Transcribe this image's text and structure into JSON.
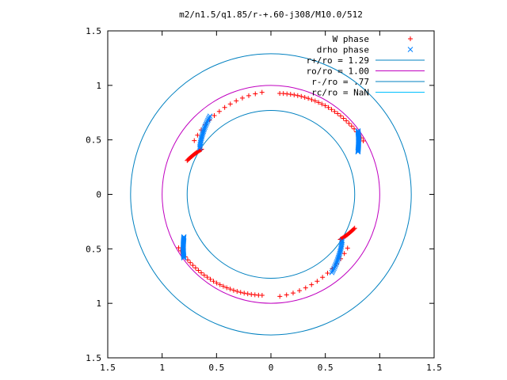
{
  "chart_data": {
    "type": "scatter",
    "title": "m2/n1.5/q1.85/r-+.60-j308/M10.0/512",
    "xlim": [
      -1.5,
      1.5
    ],
    "ylim": [
      -1.5,
      1.5
    ],
    "grid": false,
    "legend_position": "top-right",
    "x_ticks": [
      -1.5,
      -1,
      -0.5,
      0,
      0.5,
      1,
      1.5
    ],
    "x_tick_labels": [
      "1.5",
      "1",
      "0.5",
      "0",
      "0.5",
      "1",
      "1.5"
    ],
    "y_ticks": [
      1.5,
      1,
      0.5,
      0,
      -0.5,
      -1,
      -1.5
    ],
    "y_tick_labels": [
      "1.5",
      "1",
      "0.5",
      "0",
      "0.5",
      "1",
      "1.5"
    ],
    "legend": [
      {
        "label": "W phase",
        "color": "#ff0000",
        "marker": "plus"
      },
      {
        "label": "drho phase",
        "color": "#0080ff",
        "marker": "cross"
      },
      {
        "label": "r+/ro = 1.29",
        "color": "#0080c0",
        "marker": "line"
      },
      {
        "label": "ro/ro = 1.00",
        "color": "#c000c0",
        "marker": "line"
      },
      {
        "label": "r-/ro = .77",
        "color": "#0080c0",
        "marker": "line"
      },
      {
        "label": "rc/ro = NaN",
        "color": "#00c0ff",
        "marker": "line"
      }
    ],
    "circles": [
      {
        "name": "r+/ro = 1.29",
        "r": 1.29,
        "color": "#0080c0"
      },
      {
        "name": "ro/ro = 1.00",
        "r": 1.0,
        "color": "#c000c0"
      },
      {
        "name": "r-/ro = .77",
        "r": 0.77,
        "color": "#0080c0"
      }
    ],
    "series": [
      {
        "name": "W phase",
        "color": "#ff0000",
        "arcs": [
          {
            "r_start": 0.93,
            "r_end": 0.98,
            "theta_start_deg": 85,
            "theta_end_deg": 30,
            "n": 28
          },
          {
            "r_start": 0.86,
            "r_end": 0.94,
            "theta_start_deg": 145,
            "theta_end_deg": 95,
            "n": 14
          },
          {
            "r_start": 0.83,
            "r_end": 0.76,
            "theta_start_deg": 158,
            "theta_end_deg": 147,
            "n": 18
          },
          {
            "r_start": 0.93,
            "r_end": 0.98,
            "theta_start_deg": 265,
            "theta_end_deg": 210,
            "n": 28
          },
          {
            "r_start": 0.86,
            "r_end": 0.94,
            "theta_start_deg": 325,
            "theta_end_deg": 275,
            "n": 14
          },
          {
            "r_start": 0.83,
            "r_end": 0.76,
            "theta_start_deg": 338,
            "theta_end_deg": 327,
            "n": 18
          }
        ]
      },
      {
        "name": "drho phase",
        "color": "#0080ff",
        "arcs": [
          {
            "r_start": 0.99,
            "r_end": 0.89,
            "theta_start_deg": 36,
            "theta_end_deg": 26,
            "n": 24
          },
          {
            "r_start": 0.78,
            "r_end": 0.91,
            "theta_start_deg": 147,
            "theta_end_deg": 128,
            "n": 24
          },
          {
            "r_start": 0.99,
            "r_end": 0.89,
            "theta_start_deg": 216,
            "theta_end_deg": 206,
            "n": 24
          },
          {
            "r_start": 0.78,
            "r_end": 0.91,
            "theta_start_deg": 327,
            "theta_end_deg": 308,
            "n": 24
          }
        ]
      }
    ]
  }
}
